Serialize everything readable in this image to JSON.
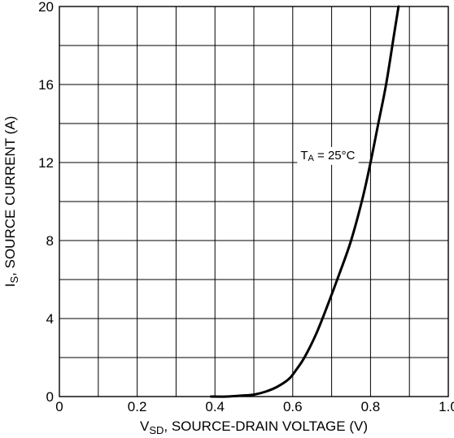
{
  "chart_data": {
    "type": "line",
    "title": "",
    "xlabel": "V_SD, SOURCE-DRAIN VOLTAGE (V)",
    "xlabel_main": "V",
    "xlabel_sub": "SD",
    "xlabel_rest": ", SOURCE-DRAIN VOLTAGE (V)",
    "ylabel": "I_S, SOURCE CURRENT (A)",
    "ylabel_main": "I",
    "ylabel_sub": "S",
    "ylabel_rest": ", SOURCE CURRENT (A)",
    "xlim": [
      0,
      1.0
    ],
    "ylim": [
      0,
      20
    ],
    "xticks": [
      0,
      0.2,
      0.4,
      0.6,
      0.8,
      1.0
    ],
    "xtick_labels": [
      "0",
      "0.2",
      "0.4",
      "0.6",
      "0.8",
      "1.0"
    ],
    "yticks": [
      0,
      4,
      8,
      12,
      16,
      20
    ],
    "ytick_labels": [
      "0",
      "4",
      "8",
      "12",
      "16",
      "20"
    ],
    "x_grid_step": 0.1,
    "y_grid_step": 2,
    "grid": true,
    "legend": "none",
    "annotation": {
      "main": "T",
      "sub": "A",
      "rest": " = 25°C",
      "x": 0.62,
      "y": 12.3
    },
    "series": [
      {
        "x": [
          0.39,
          0.43,
          0.47,
          0.5,
          0.53,
          0.56,
          0.59,
          0.61,
          0.63,
          0.66,
          0.69,
          0.72,
          0.75,
          0.78,
          0.8,
          0.82,
          0.84,
          0.86,
          0.872
        ],
        "y": [
          0.0,
          0.0,
          0.05,
          0.1,
          0.25,
          0.5,
          0.9,
          1.4,
          2.0,
          3.2,
          4.7,
          6.3,
          8.0,
          10.2,
          12.0,
          14.0,
          16.0,
          18.5,
          20.0
        ]
      }
    ],
    "colors": {
      "line": "#000000",
      "grid": "#000000",
      "background": "#ffffff"
    }
  }
}
